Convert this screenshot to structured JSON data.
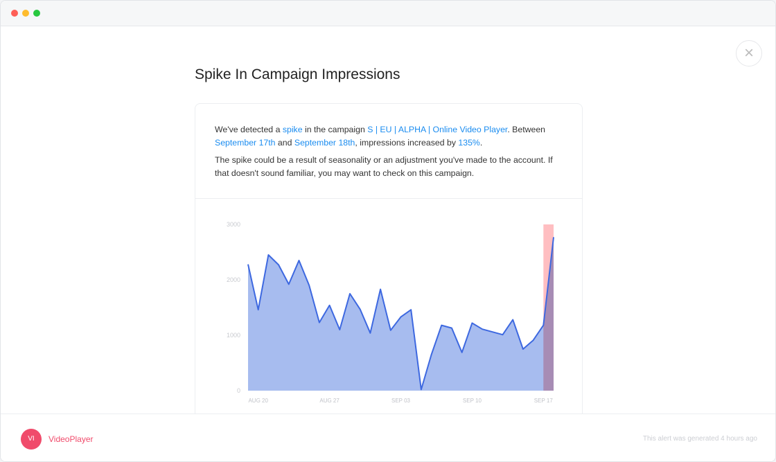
{
  "window": {
    "controls": {
      "close": "#fe5f57",
      "minimize": "#febc2e",
      "maximize": "#28c840"
    }
  },
  "title": "Spike In Campaign Impressions",
  "message": {
    "p1": [
      "We've detected a ",
      "spike",
      " in the campaign ",
      "S | EU | ALPHA | Online Video Player",
      ". Between ",
      "September 17th",
      " and ",
      "September 18th",
      ", impressions increased by ",
      "135%",
      "."
    ],
    "p2": "The spike could be a result of seasonality or an adjustment you've made to the account. If that doesn't sound familiar, you may want to check on this campaign."
  },
  "chart_data": {
    "type": "area",
    "x": [
      "Aug 19",
      "Aug 20",
      "Aug 21",
      "Aug 22",
      "Aug 23",
      "Aug 24",
      "Aug 25",
      "Aug 26",
      "Aug 27",
      "Aug 28",
      "Aug 29",
      "Aug 30",
      "Aug 31",
      "Sep 01",
      "Sep 02",
      "Sep 03",
      "Sep 04",
      "Sep 05",
      "Sep 06",
      "Sep 07",
      "Sep 08",
      "Sep 09",
      "Sep 10",
      "Sep 11",
      "Sep 12",
      "Sep 13",
      "Sep 14",
      "Sep 15",
      "Sep 16",
      "Sep 17",
      "Sep 18"
    ],
    "values": [
      2280,
      1460,
      2450,
      2270,
      1920,
      2350,
      1900,
      1230,
      1540,
      1100,
      1750,
      1470,
      1040,
      1830,
      1090,
      1330,
      1460,
      20,
      650,
      1180,
      1130,
      690,
      1220,
      1110,
      1060,
      1010,
      1280,
      750,
      910,
      1180,
      2770
    ],
    "ylim": [
      0,
      3000
    ],
    "yticks": [
      "0",
      "1000",
      "2000",
      "3000"
    ],
    "xticks": [
      {
        "label": "AUG 20",
        "index": 1
      },
      {
        "label": "AUG 27",
        "index": 8
      },
      {
        "label": "SEP 03",
        "index": 15
      },
      {
        "label": "SEP 10",
        "index": 22
      },
      {
        "label": "SEP 17",
        "index": 29
      }
    ],
    "highlight": {
      "from_index": 29,
      "to_index": 30
    },
    "colors": {
      "line": "#3d68e0",
      "fill": "#a7bcef",
      "highlight": "#ffb3b6"
    }
  },
  "footer": {
    "avatar": "VI",
    "brand": "VideoPlayer",
    "generated": "This alert was generated 4 hours ago"
  },
  "close_icon": "×"
}
